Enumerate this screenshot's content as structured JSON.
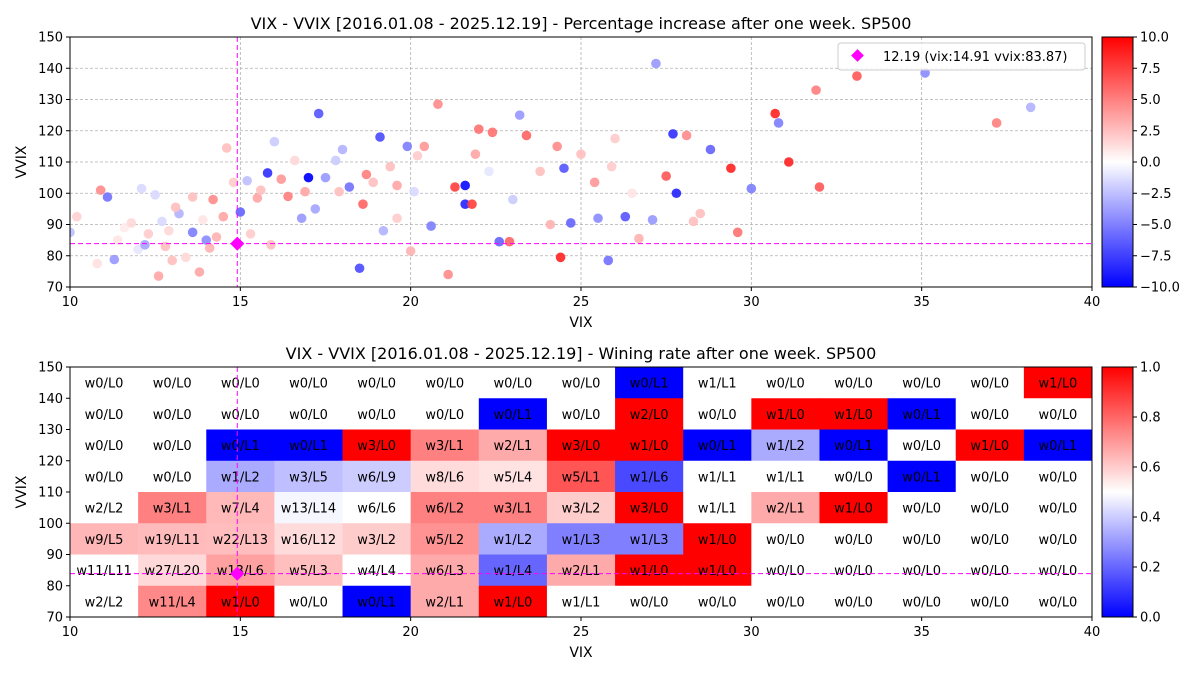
{
  "chart_data": [
    {
      "type": "scatter",
      "title": "VIX - VVIX [2016.01.08 - 2025.12.19]  - Percentage increase after one week. SP500",
      "xlabel": "VIX",
      "ylabel": "VVIX",
      "xlim": [
        10,
        40
      ],
      "ylim": [
        70,
        150
      ],
      "x_ticks": [
        "10",
        "15",
        "20",
        "25",
        "30",
        "35",
        "40"
      ],
      "y_ticks": [
        "70",
        "80",
        "90",
        "100",
        "110",
        "120",
        "130",
        "140",
        "150"
      ],
      "grid": "dashed",
      "colormap": "bwr",
      "colorbar": {
        "min": -10,
        "max": 10,
        "ticks": [
          "10.0",
          "7.5",
          "5.0",
          "2.5",
          "0.0",
          "−2.5",
          "−5.0",
          "−7.5",
          "−10.0"
        ]
      },
      "legend": {
        "label": "12.19 (vix:14.91 vvix:83.87)",
        "position": "top-right",
        "marker_color": "#ff00ff"
      },
      "current": {
        "x": 14.91,
        "y": 83.87
      },
      "points": [
        [
          10.0,
          87.5,
          -2.5
        ],
        [
          10.2,
          92.5,
          1.8
        ],
        [
          10.8,
          77.5,
          1.2
        ],
        [
          10.9,
          101.0,
          4.5
        ],
        [
          11.1,
          98.8,
          -5.5
        ],
        [
          11.3,
          78.8,
          -4.0
        ],
        [
          11.4,
          85.0,
          1.0
        ],
        [
          11.6,
          89.0,
          0.8
        ],
        [
          11.8,
          90.5,
          1.5
        ],
        [
          12.0,
          82.0,
          -1.0
        ],
        [
          12.1,
          101.5,
          -1.5
        ],
        [
          12.2,
          83.5,
          -3.5
        ],
        [
          12.3,
          87.0,
          2.0
        ],
        [
          12.5,
          99.5,
          -1.5
        ],
        [
          12.6,
          73.5,
          3.5
        ],
        [
          12.8,
          83.0,
          2.5
        ],
        [
          12.9,
          88.0,
          1.5
        ],
        [
          13.0,
          78.5,
          2.5
        ],
        [
          13.2,
          93.5,
          -3.0
        ],
        [
          13.4,
          79.5,
          1.5
        ],
        [
          13.6,
          98.8,
          2.5
        ],
        [
          13.6,
          87.5,
          -5.0
        ],
        [
          13.8,
          74.8,
          3.5
        ],
        [
          13.9,
          91.5,
          1.0
        ],
        [
          14.0,
          85.0,
          -4.5
        ],
        [
          14.2,
          98.0,
          4.5
        ],
        [
          14.3,
          86.0,
          3.0
        ],
        [
          14.5,
          92.5,
          3.5
        ],
        [
          14.6,
          114.5,
          2.5
        ],
        [
          14.8,
          103.5,
          2.0
        ],
        [
          15.0,
          94.0,
          -6.0
        ],
        [
          15.2,
          104.0,
          -2.5
        ],
        [
          15.5,
          98.5,
          3.5
        ],
        [
          15.8,
          106.5,
          -8.0
        ],
        [
          15.9,
          83.5,
          2.5
        ],
        [
          16.2,
          104.5,
          4.0
        ],
        [
          16.4,
          99.0,
          5.0
        ],
        [
          16.8,
          92.0,
          -4.0
        ],
        [
          17.0,
          105.0,
          -10.0
        ],
        [
          17.2,
          95.0,
          -3.5
        ],
        [
          17.3,
          125.5,
          -6.5
        ],
        [
          17.5,
          105.0,
          -4.0
        ],
        [
          17.9,
          100.5,
          2.5
        ],
        [
          18.0,
          114.0,
          -3.0
        ],
        [
          18.2,
          102.0,
          -5.5
        ],
        [
          18.5,
          76.0,
          -7.0
        ],
        [
          18.6,
          96.5,
          6.0
        ],
        [
          18.7,
          106.0,
          5.0
        ],
        [
          19.1,
          118.0,
          -7.0
        ],
        [
          19.2,
          88.0,
          -3.0
        ],
        [
          19.4,
          108.5,
          2.5
        ],
        [
          19.6,
          102.5,
          3.5
        ],
        [
          19.9,
          115.0,
          -5.0
        ],
        [
          20.0,
          81.5,
          3.0
        ],
        [
          20.2,
          112.0,
          2.0
        ],
        [
          20.4,
          115.0,
          4.0
        ],
        [
          20.6,
          89.5,
          -5.0
        ],
        [
          20.8,
          128.5,
          4.5
        ],
        [
          21.1,
          74.0,
          4.5
        ],
        [
          21.3,
          102.0,
          7.5
        ],
        [
          21.6,
          96.5,
          -8.5
        ],
        [
          21.6,
          102.5,
          -9.5
        ],
        [
          21.8,
          96.5,
          7.5
        ],
        [
          22.0,
          120.5,
          5.5
        ],
        [
          22.4,
          119.5,
          5.5
        ],
        [
          22.6,
          84.5,
          -6.0
        ],
        [
          22.9,
          84.5,
          6.0
        ],
        [
          23.2,
          125.0,
          -4.0
        ],
        [
          23.4,
          118.5,
          6.0
        ],
        [
          23.8,
          107.0,
          2.5
        ],
        [
          24.1,
          90.0,
          3.0
        ],
        [
          24.4,
          79.5,
          8.5
        ],
        [
          24.5,
          108.0,
          -6.5
        ],
        [
          24.7,
          90.5,
          -6.0
        ],
        [
          25.0,
          112.5,
          2.5
        ],
        [
          25.4,
          103.5,
          4.0
        ],
        [
          25.5,
          92.0,
          -4.5
        ],
        [
          25.8,
          78.5,
          -5.5
        ],
        [
          26.0,
          117.5,
          2.0
        ],
        [
          26.3,
          92.5,
          -6.5
        ],
        [
          26.7,
          85.5,
          3.0
        ],
        [
          27.1,
          91.5,
          -4.0
        ],
        [
          27.2,
          141.5,
          -4.0
        ],
        [
          27.5,
          105.5,
          6.5
        ],
        [
          27.7,
          119.0,
          -8.0
        ],
        [
          27.8,
          100.0,
          -8.5
        ],
        [
          28.1,
          118.5,
          4.5
        ],
        [
          28.3,
          91.0,
          2.5
        ],
        [
          28.8,
          114.0,
          -6.0
        ],
        [
          29.4,
          108.0,
          8.5
        ],
        [
          29.6,
          87.5,
          5.5
        ],
        [
          30.0,
          101.5,
          -5.0
        ],
        [
          30.7,
          125.5,
          8.5
        ],
        [
          30.8,
          122.5,
          -5.0
        ],
        [
          31.1,
          110.0,
          8.5
        ],
        [
          31.9,
          133.0,
          5.0
        ],
        [
          32.0,
          102.0,
          6.5
        ],
        [
          33.1,
          137.5,
          6.5
        ],
        [
          35.1,
          138.5,
          -4.5
        ],
        [
          37.2,
          122.5,
          5.0
        ],
        [
          38.2,
          127.5,
          -3.0
        ],
        [
          15.3,
          87.0,
          2.0
        ],
        [
          16.0,
          116.5,
          -2.0
        ],
        [
          16.6,
          110.5,
          1.5
        ],
        [
          17.8,
          110.5,
          -2.0
        ],
        [
          18.9,
          103.5,
          2.5
        ],
        [
          20.1,
          100.5,
          -1.5
        ],
        [
          21.9,
          112.5,
          3.5
        ],
        [
          23.0,
          98.0,
          -2.0
        ],
        [
          24.3,
          115.0,
          4.5
        ],
        [
          26.5,
          100.0,
          1.0
        ],
        [
          28.5,
          93.5,
          2.5
        ],
        [
          13.1,
          95.5,
          2.5
        ],
        [
          12.7,
          91.0,
          -1.5
        ],
        [
          15.6,
          101.0,
          2.5
        ],
        [
          16.9,
          100.5,
          3.5
        ],
        [
          19.6,
          92.0,
          2.0
        ],
        [
          22.3,
          107.0,
          -1.0
        ],
        [
          25.9,
          108.5,
          2.0
        ],
        [
          14.1,
          82.5,
          3.0
        ]
      ]
    },
    {
      "type": "heatmap",
      "title": "VIX - VVIX [2016.01.08 - 2025.12.19]  - Wining rate after one week. SP500",
      "xlabel": "VIX",
      "ylabel": "VVIX",
      "xlim": [
        10,
        40
      ],
      "ylim": [
        70,
        150
      ],
      "x_ticks": [
        "10",
        "15",
        "20",
        "25",
        "30",
        "35",
        "40"
      ],
      "y_ticks": [
        "70",
        "80",
        "90",
        "100",
        "110",
        "120",
        "130",
        "140",
        "150"
      ],
      "colormap": "bwr",
      "colorbar": {
        "min": 0,
        "max": 1,
        "ticks": [
          "1.0",
          "0.8",
          "0.6",
          "0.4",
          "0.2",
          "0.0"
        ]
      },
      "current": {
        "x": 14.91,
        "y": 83.87
      },
      "cell_width_vix": 2,
      "cell_height_vvix": 10,
      "rows": [
        [
          "w0/L0",
          "w0/L0",
          "w0/L0",
          "w0/L0",
          "w0/L0",
          "w0/L0",
          "w0/L0",
          "w0/L0",
          "w0/L1",
          "w1/L1",
          "w0/L0",
          "w0/L0",
          "w0/L0",
          "w0/L0",
          "w1/L0"
        ],
        [
          "w0/L0",
          "w0/L0",
          "w0/L0",
          "w0/L0",
          "w0/L0",
          "w0/L0",
          "w0/L1",
          "w0/L0",
          "w2/L0",
          "w0/L0",
          "w1/L0",
          "w1/L0",
          "w0/L1",
          "w0/L0",
          "w0/L0"
        ],
        [
          "w0/L0",
          "w0/L0",
          "w0/L1",
          "w0/L1",
          "w3/L0",
          "w3/L1",
          "w2/L1",
          "w3/L0",
          "w1/L0",
          "w0/L1",
          "w1/L2",
          "w0/L1",
          "w0/L0",
          "w1/L0",
          "w0/L1"
        ],
        [
          "w0/L0",
          "w0/L0",
          "w1/L2",
          "w3/L5",
          "w6/L9",
          "w8/L6",
          "w5/L4",
          "w5/L1",
          "w1/L6",
          "w1/L1",
          "w1/L1",
          "w0/L0",
          "w0/L1",
          "w0/L0",
          "w0/L0"
        ],
        [
          "w2/L2",
          "w3/L1",
          "w7/L4",
          "w13/L14",
          "w6/L6",
          "w6/L2",
          "w3/L1",
          "w3/L2",
          "w3/L0",
          "w1/L1",
          "w2/L1",
          "w1/L0",
          "w0/L0",
          "w0/L0",
          "w0/L0"
        ],
        [
          "w9/L5",
          "w19/L11",
          "w22/L13",
          "w16/L12",
          "w3/L2",
          "w5/L2",
          "w1/L2",
          "w1/L3",
          "w1/L3",
          "w1/L0",
          "w0/L0",
          "w0/L0",
          "w0/L0",
          "w0/L0",
          "w0/L0"
        ],
        [
          "w11/L11",
          "w27/L20",
          "w13/L6",
          "w5/L3",
          "w4/L4",
          "w6/L3",
          "w1/L4",
          "w2/L1",
          "w1/L0",
          "w1/L0",
          "w0/L0",
          "w0/L0",
          "w0/L0",
          "w0/L0",
          "w0/L0"
        ],
        [
          "w2/L2",
          "w11/L4",
          "w1/L0",
          "w0/L0",
          "w0/L1",
          "w2/L1",
          "w1/L0",
          "w1/L1",
          "w0/L0",
          "w0/L0",
          "w0/L0",
          "w0/L0",
          "w0/L0",
          "w0/L0",
          "w0/L0"
        ]
      ]
    }
  ]
}
